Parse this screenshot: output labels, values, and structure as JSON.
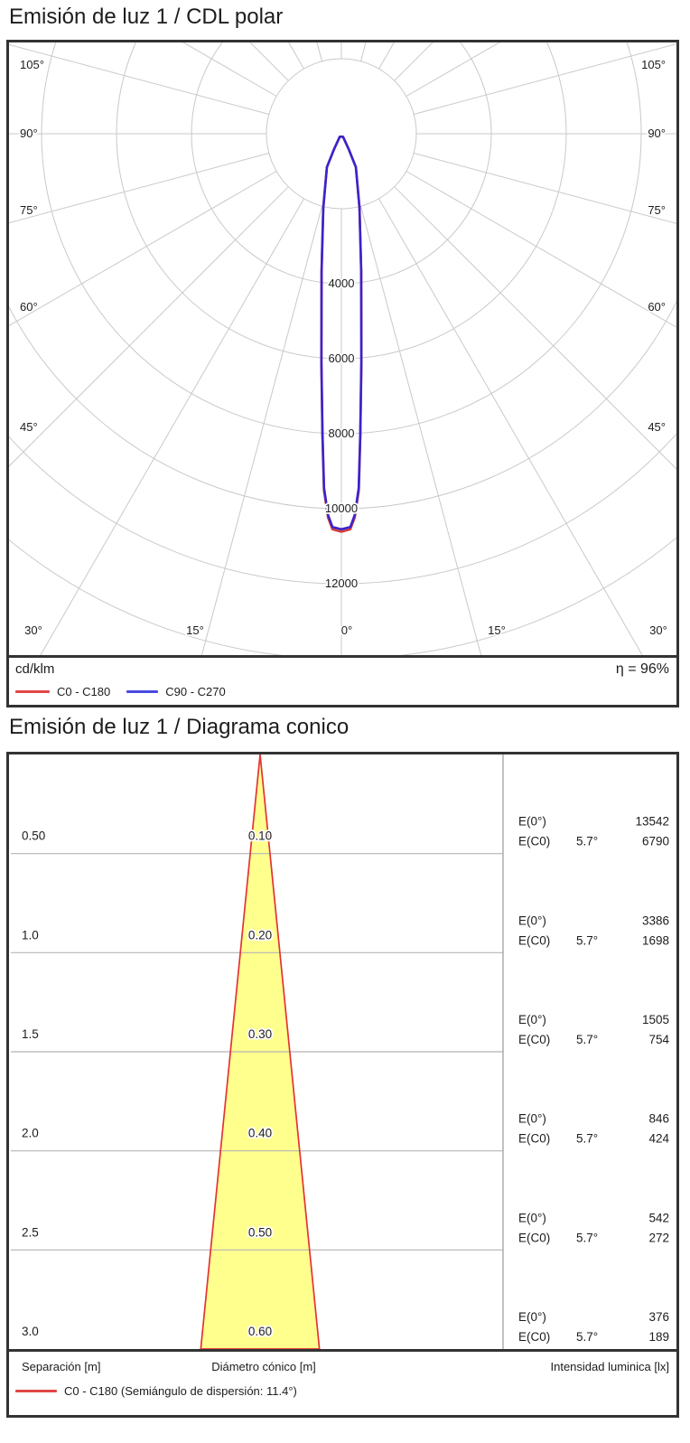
{
  "fig1": {
    "title": "Emisión de luz 1 / CDL polar",
    "unit_label": "cd/klm",
    "efficiency_label": "η = 96%",
    "legend": [
      {
        "label": "C0 - C180",
        "color": "#e14747"
      },
      {
        "label": "C90 - C270",
        "color": "#4a49df"
      }
    ]
  },
  "fig2": {
    "title": "Emisión de luz 1 / Diagrama conico",
    "footer_left": "Separación [m]",
    "footer_center": "Diámetro cónico [m]",
    "footer_right": "Intensidad luminica [lx]",
    "legend_label": "C0 - C180 (Semiángulo de dispersión: 11.4°)",
    "legend_color": "#e14747"
  },
  "chart_data": [
    {
      "type": "polar",
      "title": "Emisión de luz 1 / CDL polar",
      "unit": "cd/klm",
      "efficiency_percent": 96,
      "series": [
        {
          "name": "C0 - C180",
          "color": "#d23d3d"
        },
        {
          "name": "C90 - C270",
          "color": "#3a23cd"
        }
      ],
      "ring_values": [
        2000,
        4000,
        6000,
        8000,
        10000,
        12000,
        14000
      ],
      "ring_labels": [
        "4000",
        "6000",
        "8000",
        "10000",
        "12000"
      ],
      "side_angle_ticks": [
        "105°",
        "90°",
        "75°",
        "60°",
        "45°"
      ],
      "bottom_angle_ticks": [
        "30°",
        "15°",
        "0°",
        "15°",
        "30°"
      ],
      "peak_cd_klm": 10550,
      "beam_half_angle_deg": 5.7,
      "profile_gamma_cdklm": [
        [
          0,
          10550
        ],
        [
          1.3,
          10490
        ],
        [
          2,
          10180
        ],
        [
          2.8,
          9460
        ],
        [
          3.6,
          8020
        ],
        [
          5,
          6100
        ],
        [
          8.2,
          3700
        ],
        [
          13.7,
          2030
        ],
        [
          23.4,
          970
        ],
        [
          25.5,
          450
        ],
        [
          29,
          90
        ]
      ]
    },
    {
      "type": "cone-diagram",
      "beam_half_angle_deg": 5.7,
      "semi_angle_label": "5.7°",
      "e0_label": "E(0°)",
      "ec0_label": "E(C0)",
      "colors": {
        "fill": "#ffff8e",
        "edge": "#e23434"
      },
      "xlabel_left": "Separación [m]",
      "xlabel_center": "Diámetro cónico [m]",
      "xlabel_right": "Intensidad luminica [lx]",
      "rows": [
        {
          "separation_m": "0.50",
          "diameter_m": "0.10",
          "e0_lx": "13542",
          "ec0_lx": "6790"
        },
        {
          "separation_m": "1.0",
          "diameter_m": "0.20",
          "e0_lx": "3386",
          "ec0_lx": "1698"
        },
        {
          "separation_m": "1.5",
          "diameter_m": "0.30",
          "e0_lx": "1505",
          "ec0_lx": "754"
        },
        {
          "separation_m": "2.0",
          "diameter_m": "0.40",
          "e0_lx": "846",
          "ec0_lx": "424"
        },
        {
          "separation_m": "2.5",
          "diameter_m": "0.50",
          "e0_lx": "542",
          "ec0_lx": "272"
        },
        {
          "separation_m": "3.0",
          "diameter_m": "0.60",
          "e0_lx": "376",
          "ec0_lx": "189"
        }
      ]
    }
  ]
}
